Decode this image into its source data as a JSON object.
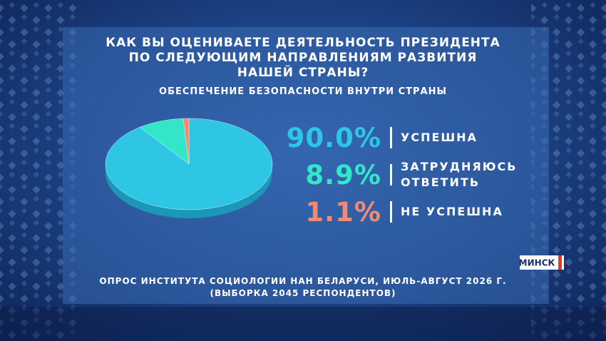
{
  "chart_data": {
    "type": "pie",
    "title": [
      "КАК ВЫ ОЦЕНИВАЕТЕ ДЕЯТЕЛЬНОСТЬ ПРЕЗИДЕНТА",
      "ПО СЛЕДУЮЩИМ НАПРАВЛЕНИЯМ РАЗВИТИЯ",
      "НАШЕЙ СТРАНЫ?"
    ],
    "subtitle": "ОБЕСПЕЧЕНИЕ БЕЗОПАСНОСТИ ВНУТРИ СТРАНЫ",
    "categories": [
      "УСПЕШНА",
      "ЗАТРУДНЯЮСЬ ОТВЕТИТЬ",
      "НЕ УСПЕШНА"
    ],
    "values": [
      90.0,
      8.9,
      1.1
    ],
    "value_labels": [
      "90.0%",
      "8.9%",
      "1.1%"
    ],
    "colors": [
      "#2fc6e6",
      "#33e6c8",
      "#f08a72"
    ],
    "source": [
      "ОПРОС ИНСТИТУТА СОЦИОЛОГИИ НАН БЕЛАРУСИ, ИЮЛЬ-АВГУСТ 2026 Г.",
      "(ВЫБОРКА 2045 РЕСПОНДЕНТОВ)"
    ]
  },
  "badge": "МИНСК"
}
